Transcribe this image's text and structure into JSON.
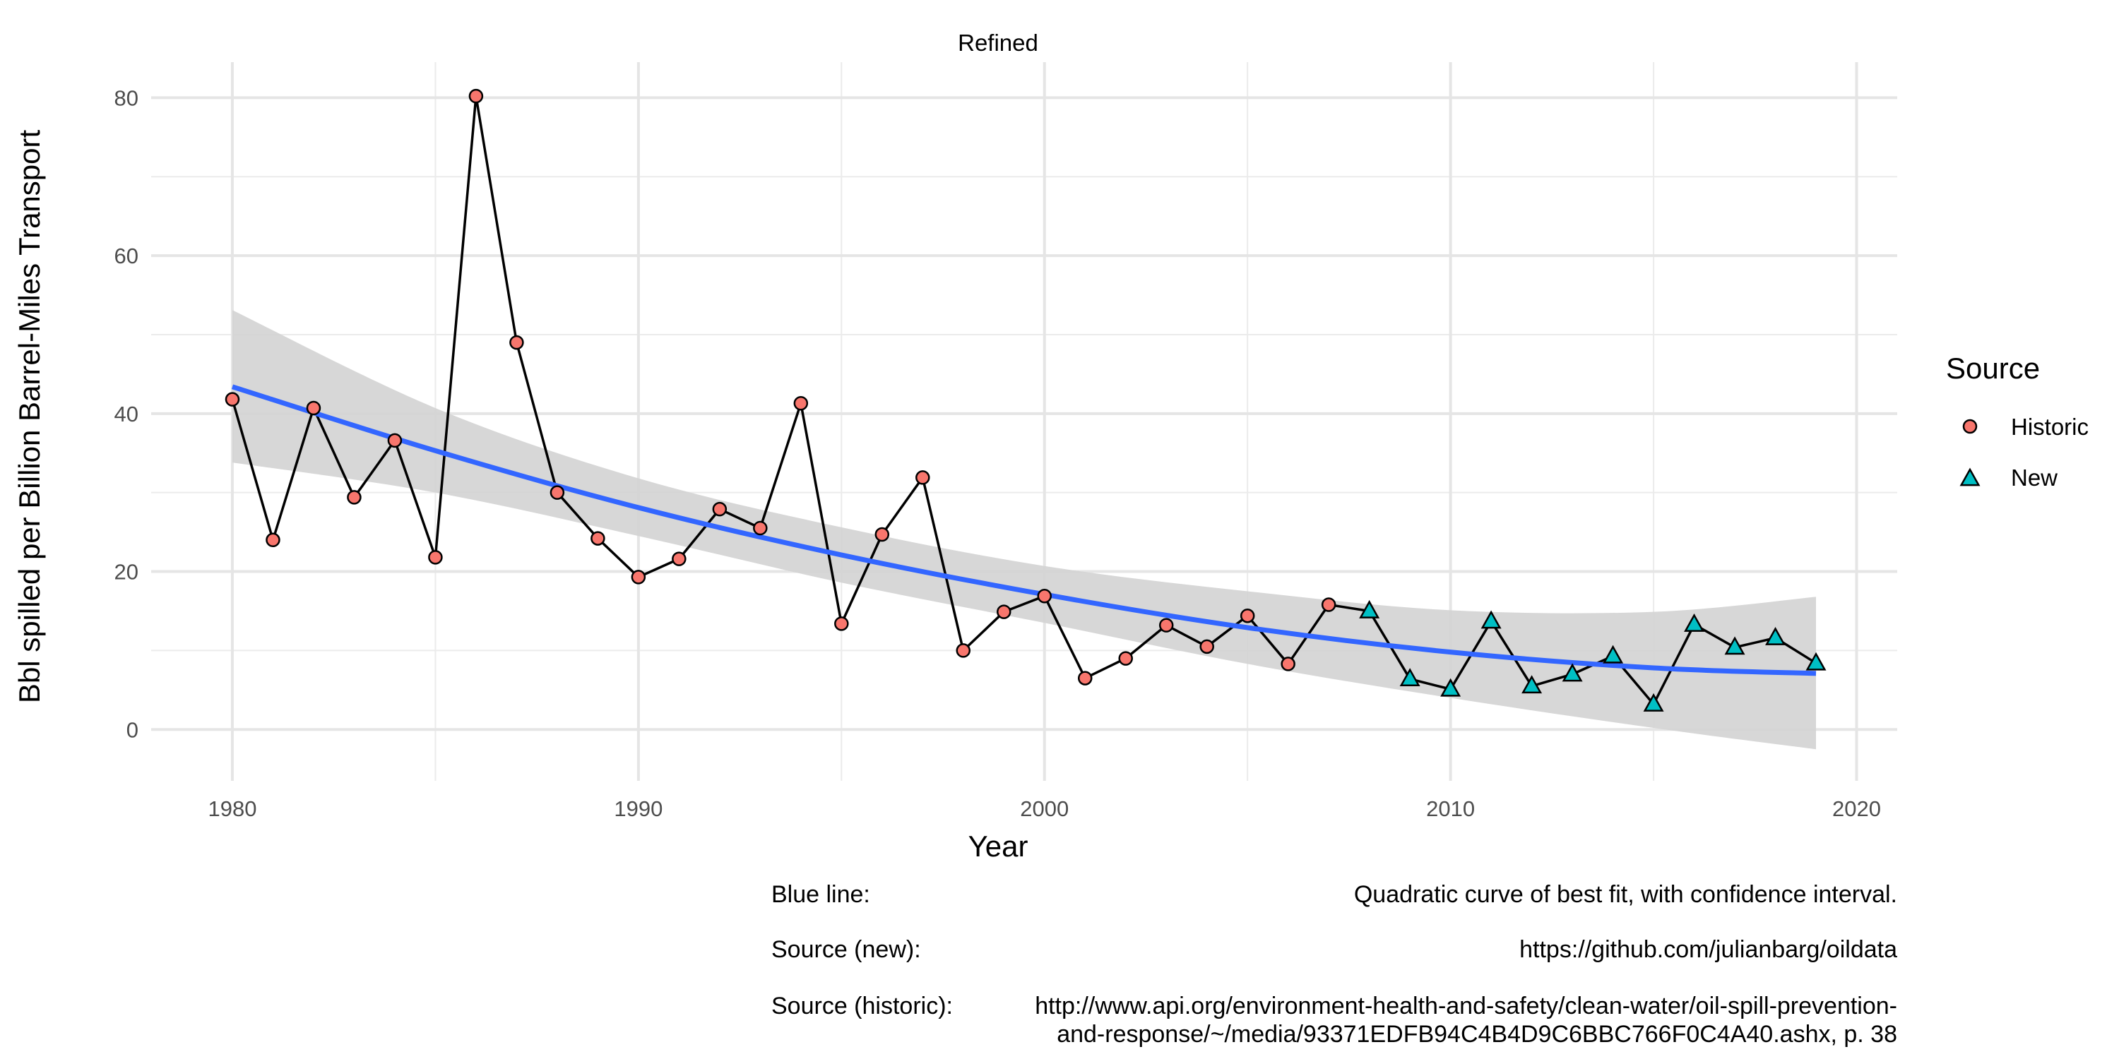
{
  "chart_data": {
    "type": "line",
    "title": "Refined",
    "xlabel": "Year",
    "ylabel": "Bbl spilled per Billion Barrel-Miles Transport",
    "xlim": [
      1978,
      2021
    ],
    "ylim": [
      -6.5,
      84.5
    ],
    "x_ticks": [
      1980,
      1990,
      2000,
      2010,
      2020
    ],
    "y_ticks": [
      0,
      20,
      40,
      60,
      80
    ],
    "grid": true,
    "legend": {
      "title": "Source",
      "position": "right",
      "entries": [
        {
          "name": "Historic",
          "shape": "circle",
          "color": "#F8766D"
        },
        {
          "name": "New",
          "shape": "triangle",
          "color": "#00BFC4"
        }
      ]
    },
    "series": [
      {
        "name": "Historic",
        "x": [
          1980,
          1981,
          1982,
          1983,
          1984,
          1985,
          1986,
          1987,
          1988,
          1989,
          1990,
          1991,
          1992,
          1993,
          1994,
          1995,
          1996,
          1997,
          1998,
          1999,
          2000,
          2001,
          2002,
          2003,
          2004,
          2005,
          2006,
          2007
        ],
        "values": [
          41.8,
          24.0,
          40.7,
          29.4,
          36.6,
          21.8,
          80.2,
          49.0,
          30.0,
          24.2,
          19.3,
          21.6,
          27.9,
          25.5,
          41.3,
          13.4,
          24.7,
          31.9,
          10.0,
          14.9,
          16.9,
          6.5,
          9.0,
          13.2,
          10.5,
          14.4,
          8.3,
          15.8
        ]
      },
      {
        "name": "New",
        "x": [
          2008,
          2009,
          2010,
          2011,
          2012,
          2013,
          2014,
          2015,
          2016,
          2017,
          2018,
          2019
        ],
        "values": [
          15.0,
          6.4,
          5.1,
          13.7,
          5.5,
          7.0,
          9.3,
          3.2,
          13.3,
          10.4,
          11.6,
          8.4
        ]
      }
    ],
    "fit": {
      "x": [
        1980,
        1985,
        1990,
        1995,
        2000,
        2005,
        2010,
        2015,
        2019
      ],
      "values": [
        43.4,
        35.3,
        28.1,
        22.1,
        17.1,
        12.9,
        9.8,
        7.8,
        7.1
      ],
      "ci_lower": [
        33.8,
        30.0,
        24.5,
        18.6,
        13.5,
        8.3,
        4.0,
        0.2,
        -2.5
      ],
      "ci_upper": [
        53.1,
        40.7,
        31.8,
        25.6,
        20.7,
        17.5,
        15.1,
        14.9,
        16.8
      ],
      "color": "#3366FF",
      "band_color": "#D3D3D3"
    }
  },
  "captions": {
    "blue_line_label": "Blue line:",
    "blue_line_text": "Quadratic curve of best fit, with confidence interval.",
    "source_new_label": "Source (new):",
    "source_new_text": "https://github.com/julianbarg/oildata",
    "source_historic_label": "Source (historic):",
    "source_historic_line1": "http://www.api.org/environment-health-and-safety/clean-water/oil-spill-prevention-",
    "source_historic_line2": "and-response/~/media/93371EDFB94C4B4D9C6BBC766F0C4A40.ashx, p. 38"
  }
}
